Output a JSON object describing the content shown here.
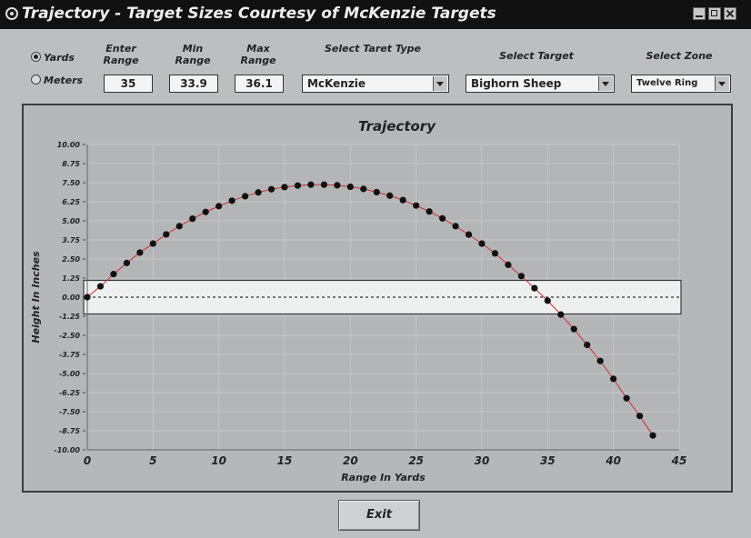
{
  "window": {
    "title": "Trajectory - Target Sizes Courtesy of McKenzie Targets"
  },
  "units": {
    "yards_label": "Yards",
    "meters_label": "Meters",
    "selected": "yards"
  },
  "fields": {
    "enter_range": {
      "label": "Enter Range",
      "value": "35"
    },
    "min_range": {
      "label": "Min Range",
      "value": "33.9"
    },
    "max_range": {
      "label": "Max Range",
      "value": "36.1"
    }
  },
  "selects": {
    "target_type": {
      "label": "Select Taret Type",
      "value": "McKenzie"
    },
    "target": {
      "label": "Select Target",
      "value": "Bighorn Sheep"
    },
    "zone": {
      "label": "Select Zone",
      "value": "Twelve Ring"
    }
  },
  "exit_label": "Exit",
  "chart_data": {
    "type": "scatter",
    "title": "Trajectory",
    "xlabel": "Range In Yards",
    "ylabel": "Height In Inches",
    "xlim": [
      0,
      45
    ],
    "ylim": [
      -10,
      10
    ],
    "xticks": [
      "0",
      "5",
      "10",
      "15",
      "20",
      "25",
      "30",
      "35",
      "40",
      "45"
    ],
    "yticks": [
      "10.00",
      "8.75",
      "7.50",
      "6.25",
      "5.00",
      "3.75",
      "2.50",
      "1.25",
      "0.00",
      "-1.25",
      "-2.50",
      "-3.75",
      "-5.00",
      "-6.25",
      "-7.50",
      "-8.75",
      "-10.00"
    ],
    "target_zone": {
      "ymin": -1.1,
      "ymax": 1.1
    },
    "zero_line": 0,
    "series": [
      {
        "x": [
          0,
          1,
          2,
          3,
          4,
          5,
          6,
          7,
          8,
          9,
          10,
          11,
          12,
          13,
          14,
          15,
          16,
          17,
          18,
          19,
          20,
          21,
          22,
          23,
          24,
          25,
          26,
          27,
          28,
          29,
          30,
          31,
          32,
          33,
          34,
          35,
          36,
          37,
          38,
          39,
          40,
          41,
          42,
          43
        ],
        "y": [
          0.0,
          0.71,
          1.51,
          2.24,
          2.92,
          3.51,
          4.11,
          4.65,
          5.14,
          5.58,
          5.96,
          6.32,
          6.61,
          6.86,
          7.07,
          7.21,
          7.31,
          7.37,
          7.37,
          7.33,
          7.23,
          7.09,
          6.88,
          6.65,
          6.36,
          6.0,
          5.61,
          5.16,
          4.65,
          4.1,
          3.51,
          2.87,
          2.12,
          1.38,
          0.59,
          -0.23,
          -1.14,
          -2.09,
          -3.12,
          -4.18,
          -5.35,
          -6.62,
          -7.78,
          -9.06
        ]
      }
    ]
  }
}
